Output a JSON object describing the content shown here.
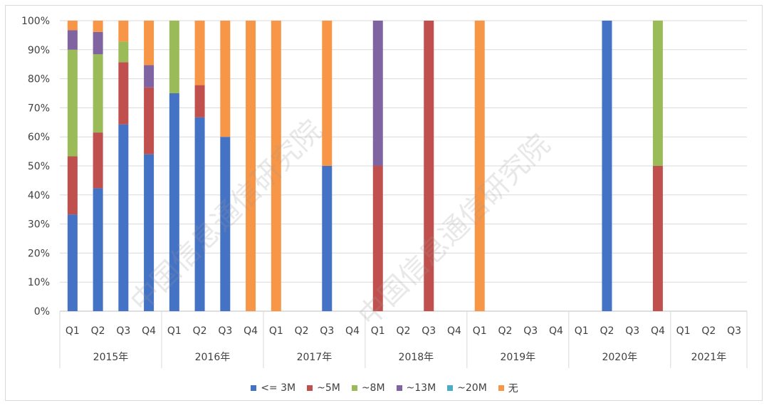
{
  "chart_data": {
    "type": "bar",
    "stacked": "percent",
    "title": "",
    "xlabel": "",
    "ylabel": "",
    "ylim": [
      0,
      100
    ],
    "ytick_labels": [
      "0%",
      "10%",
      "20%",
      "30%",
      "40%",
      "50%",
      "60%",
      "70%",
      "80%",
      "90%",
      "100%"
    ],
    "grid": true,
    "legend_position": "bottom",
    "years": [
      "2015年",
      "2016年",
      "2017年",
      "2018年",
      "2019年",
      "2020年",
      "2021年"
    ],
    "quarters": [
      [
        "Q1",
        "Q2",
        "Q3",
        "Q4"
      ],
      [
        "Q1",
        "Q2",
        "Q3",
        "Q4"
      ],
      [
        "Q1",
        "Q2",
        "Q3",
        "Q4"
      ],
      [
        "Q1",
        "Q2",
        "Q3",
        "Q4"
      ],
      [
        "Q1",
        "Q2",
        "Q3",
        "Q4"
      ],
      [
        "Q1",
        "Q2",
        "Q3",
        "Q4"
      ],
      [
        "Q1",
        "Q2",
        "Q3"
      ]
    ],
    "series": [
      {
        "name": "<= 3M",
        "color": "#4472C4",
        "values": [
          33.3,
          42.3,
          64.3,
          54.0,
          75,
          66.7,
          60,
          0,
          0,
          0,
          50,
          0,
          0,
          0,
          0,
          0,
          0,
          0,
          0,
          0,
          0,
          100,
          0,
          0,
          0,
          0,
          0
        ]
      },
      {
        "name": "~5M",
        "color": "#C0504D",
        "values": [
          20,
          19.2,
          21.4,
          23.0,
          0,
          11.1,
          0,
          0,
          0,
          0,
          0,
          0,
          50,
          0,
          100,
          0,
          0,
          0,
          0,
          0,
          0,
          0,
          0,
          50,
          0,
          0,
          0
        ]
      },
      {
        "name": "~8M",
        "color": "#9BBB59",
        "values": [
          36.7,
          26.9,
          7.1,
          0,
          25,
          0,
          0,
          0,
          0,
          0,
          0,
          0,
          0,
          0,
          0,
          0,
          0,
          0,
          0,
          0,
          0,
          0,
          0,
          50,
          0,
          0,
          0
        ]
      },
      {
        "name": "~13M",
        "color": "#8064A2",
        "values": [
          6.7,
          7.7,
          0,
          7.7,
          0,
          0,
          0,
          0,
          0,
          0,
          0,
          0,
          50,
          0,
          0,
          0,
          0,
          0,
          0,
          0,
          0,
          0,
          0,
          0,
          0,
          0,
          0
        ]
      },
      {
        "name": "~20M",
        "color": "#4BACC6",
        "values": [
          0,
          0,
          0,
          0,
          0,
          0,
          0,
          0,
          0,
          0,
          0,
          0,
          0,
          0,
          0,
          0,
          0,
          0,
          0,
          0,
          0,
          0,
          0,
          0,
          0,
          0,
          0
        ]
      },
      {
        "name": "无",
        "color": "#F79646",
        "values": [
          3.3,
          3.9,
          7.2,
          15.3,
          0,
          22.2,
          40,
          100,
          100,
          0,
          50,
          0,
          0,
          0,
          0,
          0,
          100,
          0,
          0,
          0,
          0,
          0,
          0,
          0,
          0,
          0,
          0
        ]
      }
    ],
    "watermark": "中国信息通信研究院"
  }
}
